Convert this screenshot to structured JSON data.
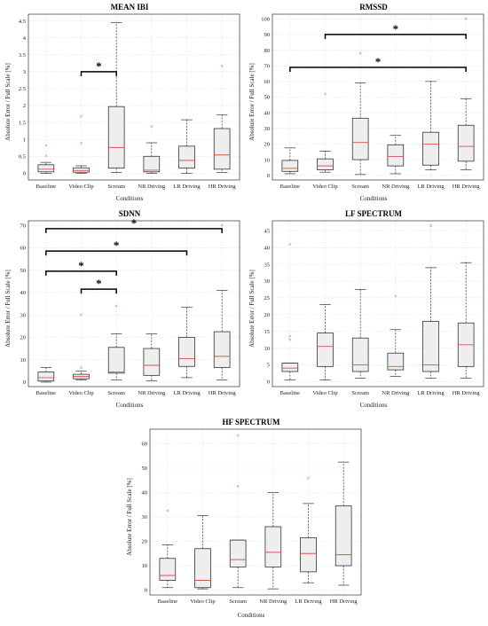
{
  "chart_data": [
    {
      "type": "box",
      "title": "MEAN IBI",
      "xlabel": "Conditions",
      "ylabel": "Absolute Error / Full Scale [%]",
      "categories": [
        "Baseline",
        "Video Clip",
        "Scream",
        "NR Driving",
        "LR Driving",
        "HR Driving"
      ],
      "ylim": [
        -0.2,
        4.7
      ],
      "yticks": [
        0,
        0.5,
        1,
        1.5,
        2,
        2.5,
        3,
        3.5,
        4,
        4.5
      ],
      "ytick_labels": [
        "0",
        "0.5",
        "1",
        "1.5",
        "2",
        "2.5",
        "3",
        "3.5",
        "4",
        "4.5"
      ],
      "boxes": [
        {
          "whisker_low": 0.0,
          "q1": 0.04,
          "median": 0.12,
          "q3": 0.25,
          "whisker_high": 0.32,
          "outliers": [
            0.52,
            0.82
          ]
        },
        {
          "whisker_low": 0.0,
          "q1": 0.03,
          "median": 0.08,
          "q3": 0.16,
          "whisker_high": 0.22,
          "outliers": [
            0.88,
            1.68
          ]
        },
        {
          "whisker_low": 0.02,
          "q1": 0.15,
          "median": 0.76,
          "q3": 1.97,
          "whisker_high": 4.45,
          "outliers": []
        },
        {
          "whisker_low": 0.0,
          "q1": 0.04,
          "median": 0.09,
          "q3": 0.5,
          "whisker_high": 0.9,
          "outliers": [
            1.38
          ]
        },
        {
          "whisker_low": 0.0,
          "q1": 0.15,
          "median": 0.38,
          "q3": 0.8,
          "whisker_high": 1.58,
          "outliers": []
        },
        {
          "whisker_low": 0.02,
          "q1": 0.12,
          "median": 0.54,
          "q3": 1.32,
          "whisker_high": 1.72,
          "outliers": [
            3.17
          ]
        }
      ],
      "significance": [
        {
          "from": 1,
          "to": 2,
          "y": 3.0,
          "label": "*"
        }
      ]
    },
    {
      "type": "box",
      "title": "RMSSD",
      "xlabel": "Conditions",
      "ylabel": "Absolute Error / Full Scale [%]",
      "categories": [
        "Baseline",
        "Video Clip",
        "Scream",
        "NR Driving",
        "LR Driving",
        "HR Driving"
      ],
      "ylim": [
        -3,
        103
      ],
      "yticks": [
        0,
        10,
        20,
        30,
        40,
        50,
        60,
        70,
        80,
        90,
        100
      ],
      "ytick_labels": [
        "0",
        "10",
        "20",
        "30",
        "40",
        "50",
        "60",
        "70",
        "80",
        "90",
        "100"
      ],
      "boxes": [
        {
          "whisker_low": 1,
          "q1": 2.5,
          "median": 4.5,
          "q3": 9.5,
          "whisker_high": 17.5,
          "outliers": []
        },
        {
          "whisker_low": 2,
          "q1": 3.5,
          "median": 6,
          "q3": 10.5,
          "whisker_high": 15.5,
          "outliers": [
            52
          ]
        },
        {
          "whisker_low": 0.5,
          "q1": 10,
          "median": 21,
          "q3": 36.5,
          "whisker_high": 59,
          "outliers": [
            78
          ]
        },
        {
          "whisker_low": 1,
          "q1": 6,
          "median": 12,
          "q3": 19.5,
          "whisker_high": 25.5,
          "outliers": []
        },
        {
          "whisker_low": 3.5,
          "q1": 6.5,
          "median": 20,
          "q3": 27.5,
          "whisker_high": 60,
          "outliers": []
        },
        {
          "whisker_low": 3.5,
          "q1": 9,
          "median": 18.5,
          "q3": 32,
          "whisker_high": 49,
          "outliers": [
            100
          ]
        }
      ],
      "significance": [
        {
          "from": 1,
          "to": 5,
          "y": 90,
          "label": "*"
        },
        {
          "from": 0,
          "to": 5,
          "y": 69,
          "label": "*"
        }
      ]
    },
    {
      "type": "box",
      "title": "SDNN",
      "xlabel": "Conditions",
      "ylabel": "Absolute Error / Full Scale [%]",
      "categories": [
        "Baseline",
        "Video Clip",
        "Scream",
        "NR Driving",
        "LR Driving",
        "HR Driving"
      ],
      "ylim": [
        -2,
        72
      ],
      "yticks": [
        0,
        10,
        20,
        30,
        40,
        50,
        60,
        70
      ],
      "ytick_labels": [
        "0",
        "10",
        "20",
        "30",
        "40",
        "50",
        "60",
        "70"
      ],
      "boxes": [
        {
          "whisker_low": 0,
          "q1": 0.5,
          "median": 2,
          "q3": 4.5,
          "whisker_high": 6.5,
          "outliers": []
        },
        {
          "whisker_low": 1,
          "q1": 1.5,
          "median": 2.5,
          "q3": 3.5,
          "whisker_high": 5,
          "outliers": [
            6.5,
            30
          ]
        },
        {
          "whisker_low": 1,
          "q1": 4,
          "median": 4.5,
          "q3": 15.5,
          "whisker_high": 21.5,
          "outliers": [
            34
          ]
        },
        {
          "whisker_low": 0.5,
          "q1": 3,
          "median": 7.5,
          "q3": 15,
          "whisker_high": 21.5,
          "outliers": []
        },
        {
          "whisker_low": 2,
          "q1": 7,
          "median": 10.5,
          "q3": 20,
          "whisker_high": 33.5,
          "outliers": []
        },
        {
          "whisker_low": 1,
          "q1": 6.5,
          "median": 11.5,
          "q3": 22.5,
          "whisker_high": 41,
          "outliers": [
            70
          ]
        }
      ],
      "significance": [
        {
          "from": 0,
          "to": 5,
          "y": 68.5,
          "label": "*"
        },
        {
          "from": 0,
          "to": 4,
          "y": 58.5,
          "label": "*"
        },
        {
          "from": 0,
          "to": 2,
          "y": 49.5,
          "label": "*"
        },
        {
          "from": 1,
          "to": 2,
          "y": 41.5,
          "label": "*"
        }
      ]
    },
    {
      "type": "box",
      "title": "LF SPECTRUM",
      "xlabel": "Conditions",
      "ylabel": "Absolute Error / Full Scale [%]",
      "categories": [
        "Baseline",
        "Video Clip",
        "Scream",
        "NR Driving",
        "LR Driving",
        "HR Driving"
      ],
      "ylim": [
        -1.5,
        48
      ],
      "yticks": [
        0,
        5,
        10,
        15,
        20,
        25,
        30,
        35,
        40,
        45
      ],
      "ytick_labels": [
        "0",
        "5",
        "10",
        "15",
        "20",
        "25",
        "30",
        "35",
        "40",
        "45"
      ],
      "boxes": [
        {
          "whisker_low": 0.5,
          "q1": 3,
          "median": 4,
          "q3": 5.5,
          "whisker_high": 5.5,
          "outliers": [
            12.5,
            13.5,
            41
          ]
        },
        {
          "whisker_low": 0.5,
          "q1": 4.5,
          "median": 10.5,
          "q3": 14.5,
          "whisker_high": 23,
          "outliers": []
        },
        {
          "whisker_low": 1,
          "q1": 3,
          "median": 5,
          "q3": 13,
          "whisker_high": 27.5,
          "outliers": []
        },
        {
          "whisker_low": 1.5,
          "q1": 3.5,
          "median": 4.5,
          "q3": 8.5,
          "whisker_high": 15.5,
          "outliers": [
            25.5
          ]
        },
        {
          "whisker_low": 1,
          "q1": 3,
          "median": 5,
          "q3": 18,
          "whisker_high": 34,
          "outliers": [
            46.5
          ]
        },
        {
          "whisker_low": 1,
          "q1": 4.5,
          "median": 11,
          "q3": 17.5,
          "whisker_high": 35.5,
          "outliers": []
        }
      ],
      "significance": []
    },
    {
      "type": "box",
      "title": "HF SPECTRUM",
      "xlabel": "Conditions",
      "ylabel": "Absolute Error / Full Scale [%]",
      "categories": [
        "Baseline",
        "Video Clip",
        "Scream",
        "NR Driving",
        "LR Driving",
        "HR Driving"
      ],
      "ylim": [
        -2,
        66
      ],
      "yticks": [
        0,
        10,
        20,
        30,
        40,
        50,
        60
      ],
      "ytick_labels": [
        "0",
        "10",
        "20",
        "30",
        "40",
        "50",
        "60"
      ],
      "boxes": [
        {
          "whisker_low": 1,
          "q1": 4,
          "median": 6,
          "q3": 13,
          "whisker_high": 18.5,
          "outliers": [
            32.5
          ]
        },
        {
          "whisker_low": 0.5,
          "q1": 1,
          "median": 4,
          "q3": 17,
          "whisker_high": 30.5,
          "outliers": []
        },
        {
          "whisker_low": 1,
          "q1": 9.5,
          "median": 12.5,
          "q3": 20.5,
          "whisker_high": 20.5,
          "outliers": [
            42.5,
            63.5
          ]
        },
        {
          "whisker_low": 0.5,
          "q1": 9.5,
          "median": 15.5,
          "q3": 26,
          "whisker_high": 40,
          "outliers": []
        },
        {
          "whisker_low": 3,
          "q1": 7.5,
          "median": 15,
          "q3": 21.5,
          "whisker_high": 35.5,
          "outliers": [
            46
          ]
        },
        {
          "whisker_low": 2,
          "q1": 10,
          "median": 14.5,
          "q3": 34.5,
          "whisker_high": 52.5,
          "outliers": []
        }
      ],
      "significance": []
    }
  ],
  "colors": {
    "box_fill": "#eeeeee",
    "box_stroke": "#333333",
    "median": "#d9534f",
    "outlier": "#e5534b",
    "grid": "#d9d9d9",
    "axis": "#333333"
  }
}
